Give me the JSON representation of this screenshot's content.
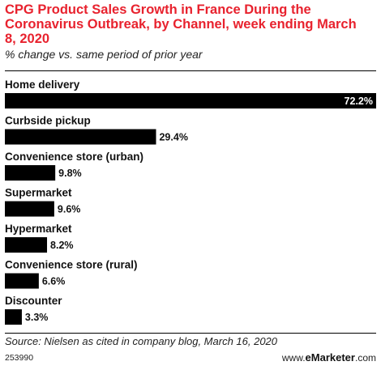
{
  "header": {
    "title": "CPG Product Sales Growth in France During the Coronavirus Outbreak, by Channel, week ending March 8, 2020",
    "subtitle": "% change vs. same period of prior year"
  },
  "footer": {
    "source": "Source: Nielsen as cited in company blog, March 16, 2020",
    "chart_id": "253990",
    "brand_prefix": "www.",
    "brand_name": "eMarketer",
    "brand_suffix": ".com"
  },
  "colors": {
    "bar": "#000000",
    "title": "#e8222e",
    "label_inside": "#ffffff",
    "label_outside": "#111111"
  },
  "chart_data": {
    "type": "bar",
    "orientation": "horizontal",
    "title": "CPG Product Sales Growth in France During the Coronavirus Outbreak, by Channel, week ending March 8, 2020",
    "subtitle": "% change vs. same period of prior year",
    "categories": [
      "Home delivery",
      "Curbside pickup",
      "Convenience store (urban)",
      "Supermarket",
      "Hypermarket",
      "Convenience store (rural)",
      "Discounter"
    ],
    "values": [
      72.2,
      29.4,
      9.8,
      9.6,
      8.2,
      6.6,
      3.3
    ],
    "value_labels": [
      "72.2%",
      "29.4%",
      "9.8%",
      "9.6%",
      "8.2%",
      "6.6%",
      "3.3%"
    ],
    "xlim": [
      0,
      72.2
    ],
    "grid": false,
    "legend": "none"
  }
}
